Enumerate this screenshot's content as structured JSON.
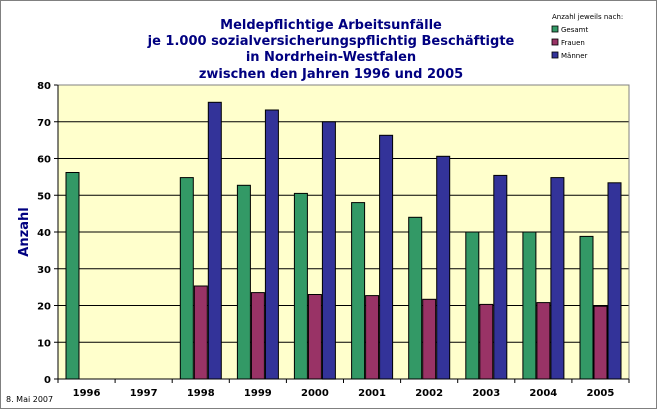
{
  "chart_data": {
    "type": "bar",
    "title_lines": [
      "Meldepflichtige Arbeitsunfälle",
      "je 1.000 sozialversicherungspflichtig Beschäftigte",
      "in Nordrhein-Westfalen",
      "zwischen den Jahren 1996 und 2005"
    ],
    "xlabel": "",
    "ylabel": "Anzahl",
    "ylim": [
      0,
      80
    ],
    "yticks": [
      "0",
      "10",
      "20",
      "30",
      "40",
      "50",
      "60",
      "70",
      "80"
    ],
    "grid": true,
    "legend_title": "Anzahl jeweils nach:",
    "legend_position": "top-right",
    "categories": [
      "1996",
      "1997",
      "1998",
      "1999",
      "2000",
      "2001",
      "2002",
      "2003",
      "2004",
      "2005"
    ],
    "series": [
      {
        "name": "Gesamt",
        "color": "#339966",
        "values": [
          56.2,
          null,
          54.8,
          52.7,
          50.5,
          48.0,
          44.0,
          40.0,
          40.0,
          38.8
        ]
      },
      {
        "name": "Frauen",
        "color": "#993366",
        "values": [
          null,
          null,
          25.3,
          23.5,
          23.0,
          22.7,
          21.7,
          20.3,
          20.8,
          19.8
        ]
      },
      {
        "name": "Männer",
        "color": "#333399",
        "values": [
          null,
          null,
          75.3,
          73.2,
          70.0,
          66.3,
          60.6,
          55.4,
          54.8,
          53.4
        ]
      }
    ],
    "plot_background": "#ffffcc"
  },
  "footer": {
    "date": "8. Mai 2007"
  }
}
